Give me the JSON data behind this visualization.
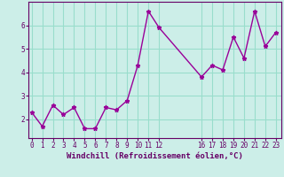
{
  "x": [
    0,
    1,
    2,
    3,
    4,
    5,
    6,
    7,
    8,
    9,
    10,
    11,
    12,
    16,
    17,
    18,
    19,
    20,
    21,
    22,
    23
  ],
  "y": [
    2.3,
    1.7,
    2.6,
    2.2,
    2.5,
    1.6,
    1.6,
    2.5,
    2.4,
    2.8,
    4.3,
    6.6,
    5.9,
    3.8,
    4.3,
    4.1,
    5.5,
    4.6,
    6.6,
    5.1,
    5.7
  ],
  "line_color": "#990099",
  "marker": "*",
  "bg_color": "#cceee8",
  "grid_color": "#99ddcc",
  "xlabel": "Windchill (Refroidissement éolien,°C)",
  "xticks": [
    0,
    1,
    2,
    3,
    4,
    5,
    6,
    7,
    8,
    9,
    10,
    11,
    12,
    16,
    17,
    18,
    19,
    20,
    21,
    22,
    23
  ],
  "yticks": [
    2,
    3,
    4,
    5,
    6
  ],
  "ylim": [
    1.2,
    7.0
  ],
  "xlim": [
    -0.3,
    23.5
  ],
  "axis_color": "#660066",
  "tick_fontsize": 5.5,
  "label_fontsize": 6.5,
  "markersize": 3.5,
  "linewidth": 1.0
}
